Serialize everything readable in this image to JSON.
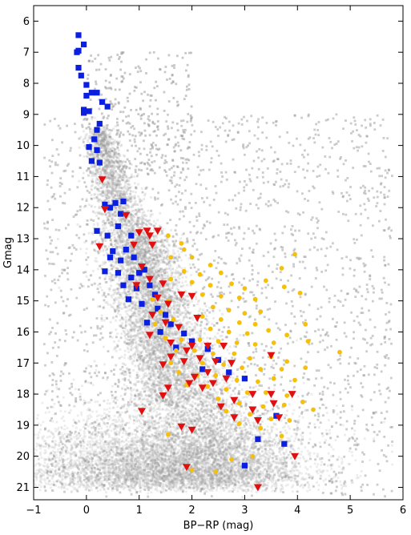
{
  "chart_data": {
    "type": "scatter",
    "title": "",
    "xlabel": "BP−RP (mag)",
    "ylabel": "Gmag",
    "xlim": [
      -1,
      6
    ],
    "ylim": [
      21.4,
      5.5
    ],
    "y_inverted": true,
    "xticks": [
      -1,
      0,
      1,
      2,
      3,
      4,
      5,
      6
    ],
    "yticks": [
      6,
      7,
      8,
      9,
      10,
      11,
      12,
      13,
      14,
      15,
      16,
      17,
      18,
      19,
      20,
      21
    ],
    "grid": false,
    "legend": "none",
    "colors": {
      "field_stars": "#9a9a9a",
      "blue_squares": "#0a1fe0",
      "red_triangles": "#e01010",
      "orange_circles": "#f5bf0a"
    },
    "series": [
      {
        "marker": "square",
        "color": "#0a1fe0",
        "points": [
          [
            -0.15,
            6.45
          ],
          [
            -0.15,
            6.95
          ],
          [
            -0.18,
            7.0
          ],
          [
            -0.05,
            6.75
          ],
          [
            -0.15,
            7.5
          ],
          [
            -0.1,
            7.75
          ],
          [
            0.0,
            8.05
          ],
          [
            0.1,
            8.3
          ],
          [
            0.2,
            8.3
          ],
          [
            0.0,
            8.4
          ],
          [
            -0.05,
            8.85
          ],
          [
            0.05,
            8.9
          ],
          [
            -0.05,
            8.95
          ],
          [
            0.3,
            8.6
          ],
          [
            0.4,
            8.75
          ],
          [
            0.25,
            9.3
          ],
          [
            0.2,
            9.5
          ],
          [
            0.15,
            9.8
          ],
          [
            0.05,
            10.05
          ],
          [
            0.2,
            10.15
          ],
          [
            0.1,
            10.5
          ],
          [
            0.25,
            10.55
          ],
          [
            0.35,
            11.9
          ],
          [
            0.45,
            12.0
          ],
          [
            0.55,
            11.85
          ],
          [
            0.65,
            12.2
          ],
          [
            0.7,
            11.8
          ],
          [
            0.2,
            12.75
          ],
          [
            0.4,
            12.9
          ],
          [
            0.6,
            12.6
          ],
          [
            0.85,
            12.9
          ],
          [
            0.5,
            13.4
          ],
          [
            0.75,
            13.35
          ],
          [
            0.45,
            13.6
          ],
          [
            0.65,
            13.7
          ],
          [
            0.9,
            13.6
          ],
          [
            0.35,
            14.05
          ],
          [
            0.6,
            14.1
          ],
          [
            0.85,
            14.25
          ],
          [
            1.0,
            14.1
          ],
          [
            1.1,
            14.0
          ],
          [
            0.7,
            14.5
          ],
          [
            0.95,
            14.6
          ],
          [
            1.2,
            14.5
          ],
          [
            1.3,
            14.8
          ],
          [
            0.8,
            14.95
          ],
          [
            1.05,
            15.1
          ],
          [
            1.35,
            15.25
          ],
          [
            1.5,
            15.45
          ],
          [
            1.15,
            15.7
          ],
          [
            1.6,
            15.75
          ],
          [
            1.4,
            16.0
          ],
          [
            1.85,
            16.05
          ],
          [
            2.0,
            16.3
          ],
          [
            1.7,
            16.5
          ],
          [
            2.3,
            16.55
          ],
          [
            2.5,
            16.9
          ],
          [
            2.2,
            17.2
          ],
          [
            2.7,
            17.3
          ],
          [
            3.0,
            17.5
          ],
          [
            3.6,
            18.7
          ],
          [
            3.25,
            19.45
          ],
          [
            3.75,
            19.6
          ],
          [
            3.0,
            20.3
          ]
        ]
      },
      {
        "marker": "triangle-down",
        "color": "#e01010",
        "points": [
          [
            0.3,
            11.1
          ],
          [
            0.35,
            12.05
          ],
          [
            0.75,
            12.25
          ],
          [
            1.0,
            12.8
          ],
          [
            1.15,
            12.75
          ],
          [
            1.2,
            12.9
          ],
          [
            1.35,
            12.75
          ],
          [
            0.9,
            13.2
          ],
          [
            1.25,
            13.2
          ],
          [
            0.25,
            13.25
          ],
          [
            1.05,
            13.9
          ],
          [
            1.2,
            14.3
          ],
          [
            1.45,
            14.45
          ],
          [
            0.95,
            14.5
          ],
          [
            1.35,
            14.9
          ],
          [
            1.55,
            15.1
          ],
          [
            1.8,
            14.8
          ],
          [
            2.0,
            14.85
          ],
          [
            1.25,
            15.45
          ],
          [
            1.5,
            15.7
          ],
          [
            1.75,
            15.85
          ],
          [
            2.1,
            15.55
          ],
          [
            1.2,
            16.1
          ],
          [
            1.6,
            16.35
          ],
          [
            2.0,
            16.45
          ],
          [
            1.9,
            16.6
          ],
          [
            2.3,
            16.45
          ],
          [
            2.6,
            16.45
          ],
          [
            1.6,
            16.8
          ],
          [
            1.85,
            16.95
          ],
          [
            2.15,
            16.85
          ],
          [
            2.45,
            16.95
          ],
          [
            2.75,
            17.0
          ],
          [
            1.45,
            17.05
          ],
          [
            2.3,
            17.3
          ],
          [
            2.05,
            17.45
          ],
          [
            2.65,
            17.5
          ],
          [
            2.4,
            17.65
          ],
          [
            1.95,
            17.65
          ],
          [
            1.55,
            17.8
          ],
          [
            2.2,
            17.8
          ],
          [
            3.15,
            18.0
          ],
          [
            2.8,
            18.2
          ],
          [
            1.45,
            18.05
          ],
          [
            2.55,
            18.4
          ],
          [
            3.5,
            18.0
          ],
          [
            3.9,
            18.0
          ],
          [
            3.15,
            18.5
          ],
          [
            3.55,
            18.3
          ],
          [
            2.8,
            18.75
          ],
          [
            3.25,
            18.85
          ],
          [
            3.65,
            18.75
          ],
          [
            1.05,
            18.55
          ],
          [
            1.8,
            19.05
          ],
          [
            2.0,
            19.15
          ],
          [
            3.95,
            20.0
          ],
          [
            1.9,
            20.35
          ],
          [
            3.25,
            21.0
          ],
          [
            3.5,
            16.75
          ]
        ]
      },
      {
        "marker": "circle",
        "color": "#f5bf0a",
        "points": [
          [
            1.55,
            12.9
          ],
          [
            1.8,
            13.15
          ],
          [
            1.6,
            13.6
          ],
          [
            2.0,
            13.6
          ],
          [
            2.35,
            13.85
          ],
          [
            1.85,
            14.05
          ],
          [
            2.15,
            14.15
          ],
          [
            2.55,
            14.1
          ],
          [
            2.0,
            14.4
          ],
          [
            2.35,
            14.5
          ],
          [
            2.75,
            14.45
          ],
          [
            3.0,
            14.6
          ],
          [
            3.4,
            14.35
          ],
          [
            3.75,
            14.55
          ],
          [
            3.95,
            13.5
          ],
          [
            3.7,
            13.95
          ],
          [
            2.2,
            14.8
          ],
          [
            2.55,
            14.85
          ],
          [
            2.9,
            14.9
          ],
          [
            3.2,
            14.95
          ],
          [
            1.25,
            14.95
          ],
          [
            1.55,
            15.0
          ],
          [
            2.4,
            15.2
          ],
          [
            2.7,
            15.3
          ],
          [
            3.0,
            15.4
          ],
          [
            3.3,
            15.35
          ],
          [
            1.4,
            15.35
          ],
          [
            2.2,
            15.5
          ],
          [
            2.55,
            15.6
          ],
          [
            2.9,
            15.7
          ],
          [
            3.2,
            15.75
          ],
          [
            1.65,
            15.6
          ],
          [
            1.3,
            15.75
          ],
          [
            2.35,
            15.9
          ],
          [
            2.7,
            16.0
          ],
          [
            3.05,
            16.05
          ],
          [
            3.45,
            15.95
          ],
          [
            3.8,
            16.1
          ],
          [
            4.15,
            15.75
          ],
          [
            1.5,
            16.2
          ],
          [
            1.8,
            16.25
          ],
          [
            2.15,
            16.25
          ],
          [
            2.5,
            16.3
          ],
          [
            2.85,
            16.35
          ],
          [
            3.2,
            16.4
          ],
          [
            3.55,
            16.35
          ],
          [
            4.2,
            16.3
          ],
          [
            1.7,
            16.6
          ],
          [
            2.05,
            16.6
          ],
          [
            2.4,
            16.7
          ],
          [
            2.8,
            16.7
          ],
          [
            3.1,
            16.85
          ],
          [
            3.5,
            16.8
          ],
          [
            3.8,
            16.95
          ],
          [
            1.6,
            17.0
          ],
          [
            2.2,
            17.0
          ],
          [
            2.6,
            17.05
          ],
          [
            2.95,
            17.15
          ],
          [
            3.3,
            17.2
          ],
          [
            3.7,
            17.2
          ],
          [
            4.15,
            17.15
          ],
          [
            1.75,
            17.3
          ],
          [
            2.1,
            17.4
          ],
          [
            2.45,
            17.4
          ],
          [
            2.85,
            17.55
          ],
          [
            3.25,
            17.6
          ],
          [
            3.55,
            17.5
          ],
          [
            3.95,
            17.55
          ],
          [
            1.9,
            17.7
          ],
          [
            2.3,
            17.75
          ],
          [
            2.65,
            17.85
          ],
          [
            3.05,
            17.95
          ],
          [
            3.4,
            17.95
          ],
          [
            3.8,
            18.05
          ],
          [
            2.5,
            18.15
          ],
          [
            2.9,
            18.3
          ],
          [
            3.35,
            18.4
          ],
          [
            3.75,
            18.35
          ],
          [
            4.1,
            18.25
          ],
          [
            2.65,
            18.55
          ],
          [
            3.1,
            18.65
          ],
          [
            3.5,
            18.8
          ],
          [
            3.85,
            18.85
          ],
          [
            4.3,
            18.5
          ],
          [
            2.9,
            18.95
          ],
          [
            3.3,
            19.1
          ],
          [
            1.55,
            19.3
          ],
          [
            3.7,
            19.35
          ],
          [
            2.75,
            20.1
          ],
          [
            3.15,
            20.0
          ],
          [
            2.0,
            20.45
          ],
          [
            2.45,
            20.5
          ],
          [
            4.8,
            16.65
          ],
          [
            4.05,
            14.75
          ],
          [
            1.85,
            13.35
          ],
          [
            1.6,
            14.3
          ]
        ]
      }
    ]
  }
}
